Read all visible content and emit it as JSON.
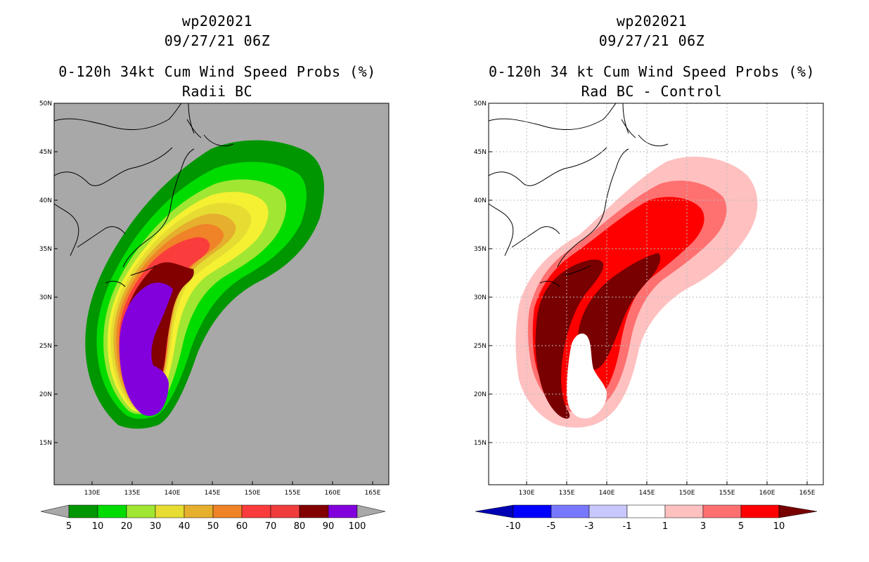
{
  "left_panel": {
    "storm_id": "wp202021",
    "datetime": "09/27/21 06Z",
    "product": "0-120h 34kt Cum Wind Speed Probs (%)",
    "subtitle": "Radii BC",
    "background_color": "#a8a8a8",
    "colorbar": {
      "colors": [
        "#009600",
        "#00dc00",
        "#a0e632",
        "#e6dc32",
        "#e6af2d",
        "#f08228",
        "#fa3c3c",
        "#f03c3c",
        "#820000",
        "#8200dc"
      ],
      "labels": [
        "5",
        "10",
        "20",
        "30",
        "40",
        "50",
        "60",
        "70",
        "80",
        "90",
        "100"
      ]
    }
  },
  "right_panel": {
    "storm_id": "wp202021",
    "datetime": "09/27/21 06Z",
    "product": "0-120h 34 kt Cum Wind Speed Probs (%)",
    "subtitle": "Rad BC - Control",
    "background_color": "#ffffff",
    "colorbar": {
      "colors": [
        "#0000b4",
        "#0000ff",
        "#7878ff",
        "#c8c8ff",
        "#ffffff",
        "#ffc0c0",
        "#ff7070",
        "#ff0000",
        "#780000"
      ],
      "labels": [
        "-10",
        "-5",
        "-3",
        "-1",
        "1",
        "3",
        "5",
        "10"
      ]
    }
  },
  "map_axes": {
    "lon_labels": [
      "130E",
      "135E",
      "140E",
      "145E",
      "150E",
      "155E",
      "160E",
      "165E"
    ],
    "lat_labels": [
      "50N",
      "45N",
      "40N",
      "35N",
      "30N",
      "25N",
      "20N",
      "15N"
    ]
  }
}
